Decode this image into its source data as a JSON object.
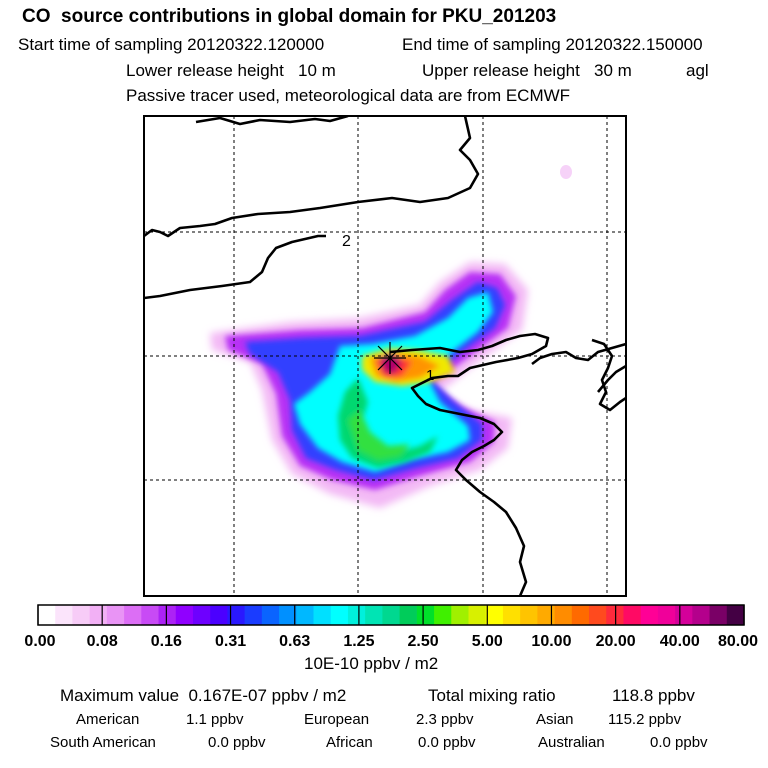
{
  "header": {
    "title": "CO  source contributions in global domain for PKU_201203",
    "start_label": "Start time of sampling 20120322.120000",
    "end_label": "End time of sampling 20120322.150000",
    "lower_release": "Lower release height   10 m",
    "upper_release": "Upper release height   30 m",
    "agl": "agl",
    "tracer_note": "Passive tracer used, meteorological data are from ECMWF"
  },
  "map": {
    "grid_labels": [
      "2",
      "1"
    ],
    "receptor_icon": "star-marker-icon"
  },
  "colorbar": {
    "colors": [
      "#ffffff",
      "#fbe4fb",
      "#f7ccf7",
      "#f2b0f5",
      "#e994f5",
      "#dc6ef5",
      "#c84af5",
      "#ac22f5",
      "#9000ff",
      "#6e00ff",
      "#4b00ff",
      "#2a18ff",
      "#1a3cff",
      "#0a64ff",
      "#0090ff",
      "#00b8ff",
      "#00e0ff",
      "#00ffff",
      "#00f0dc",
      "#00e4b4",
      "#00d890",
      "#00cc5a",
      "#00e02a",
      "#40f000",
      "#a0f000",
      "#d8f000",
      "#ffff00",
      "#ffe000",
      "#ffc400",
      "#ffaa00",
      "#ff8c00",
      "#ff6a00",
      "#ff4a1e",
      "#ff2a3c",
      "#ff0a64",
      "#ff0096",
      "#f0009a",
      "#d4009a",
      "#b4008c",
      "#7a0066",
      "#440044"
    ],
    "tick_labels": [
      "0.00",
      "0.08",
      "0.16",
      "0.31",
      "0.63",
      "1.25",
      "2.50",
      "5.00",
      "10.00",
      "20.00",
      "40.00",
      "80.00"
    ],
    "units": "10E-10 ppbv / m2"
  },
  "summary": {
    "max_value": "Maximum value  0.167E-07 ppbv / m2",
    "total_mixing": "Total mixing ratio",
    "total_value": "118.8 ppbv",
    "american_label": "American",
    "american_value": "1.1 ppbv",
    "european_label": "European",
    "european_value": "2.3 ppbv",
    "asian_label": "Asian",
    "asian_value": "115.2 ppbv",
    "south_american_label": "South American",
    "south_american_value": "0.0 ppbv",
    "african_label": "African",
    "african_value": "0.0 ppbv",
    "australian_label": "Australian",
    "australian_value": "0.0 ppbv"
  }
}
